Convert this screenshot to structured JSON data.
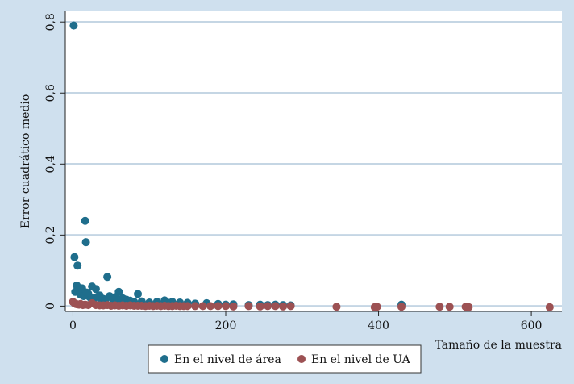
{
  "chart_data": {
    "type": "scatter",
    "title": "",
    "xlabel": "Tamaño de la muestra",
    "ylabel": "Error cuadrático medio",
    "xlim": [
      -10,
      640
    ],
    "ylim": [
      -0.015,
      0.83
    ],
    "x_ticks": [
      0,
      200,
      400,
      600
    ],
    "x_tick_labels": [
      "0",
      "200",
      "400",
      "600"
    ],
    "y_ticks": [
      0,
      0.2,
      0.4,
      0.6,
      0.8
    ],
    "y_tick_labels": [
      "0",
      "0,2",
      "0,4",
      "0,6",
      "0,8"
    ],
    "grid": "horizontal",
    "legend_position": "bottom",
    "colors": {
      "background": "#cfe0ee",
      "plot_background": "#ffffff",
      "gridline": "#c5d6e4",
      "area_series": "#1f6e8c",
      "ua_series": "#9c5153"
    },
    "series": [
      {
        "name": "En el nivel de área",
        "color": "#1f6e8c",
        "x": [
          1,
          2,
          6,
          16,
          17,
          3,
          5,
          8,
          12,
          15,
          25,
          30,
          45,
          48,
          60,
          85,
          20,
          22,
          35,
          40,
          55,
          65,
          70,
          75,
          80,
          90,
          100,
          110,
          120,
          125,
          130,
          140,
          150,
          160,
          175,
          190,
          200,
          210,
          230,
          245,
          255,
          265,
          275,
          285,
          430,
          10,
          14,
          18,
          28,
          33,
          38,
          42,
          52,
          58
        ],
        "y": [
          0.79,
          0.138,
          0.114,
          0.24,
          0.18,
          0.04,
          0.058,
          0.045,
          0.05,
          0.03,
          0.055,
          0.048,
          0.082,
          0.028,
          0.04,
          0.034,
          0.035,
          0.025,
          0.03,
          0.02,
          0.025,
          0.022,
          0.018,
          0.015,
          0.012,
          0.013,
          0.01,
          0.012,
          0.016,
          0.009,
          0.012,
          0.01,
          0.009,
          0.007,
          0.008,
          0.006,
          0.004,
          0.005,
          0.003,
          0.004,
          0.003,
          0.004,
          0.003,
          0.002,
          0.004,
          0.032,
          0.028,
          0.038,
          0.022,
          0.027,
          0.018,
          0.015,
          0.02,
          0.015
        ]
      },
      {
        "name": "En el nivel de UA",
        "color": "#9c5153",
        "x": [
          0,
          2,
          4,
          6,
          8,
          10,
          13,
          16,
          20,
          25,
          30,
          35,
          40,
          45,
          50,
          55,
          60,
          65,
          70,
          75,
          80,
          85,
          90,
          95,
          100,
          105,
          110,
          115,
          120,
          125,
          130,
          135,
          140,
          145,
          150,
          160,
          170,
          180,
          190,
          200,
          210,
          230,
          245,
          255,
          265,
          275,
          285,
          345,
          395,
          398,
          430,
          480,
          493,
          514,
          518,
          624
        ],
        "y": [
          0.012,
          0.008,
          0.006,
          0.005,
          0.004,
          0.006,
          0.003,
          0.004,
          0.003,
          0.008,
          0.003,
          0.002,
          0.002,
          0.003,
          0.001,
          0.002,
          0.001,
          0.002,
          0.001,
          0.002,
          0.001,
          0.001,
          0.001,
          0.0,
          0.001,
          0.0,
          0.001,
          0.0,
          0.001,
          0.0,
          0.0,
          0.001,
          0.0,
          0.0,
          0.0,
          0.0,
          0.0,
          0.0,
          0.0,
          0.0,
          -0.001,
          0.0,
          -0.001,
          0.0,
          0.0,
          -0.001,
          0.0,
          -0.002,
          -0.003,
          -0.002,
          -0.002,
          -0.002,
          -0.002,
          -0.002,
          -0.003,
          -0.003
        ]
      }
    ]
  }
}
